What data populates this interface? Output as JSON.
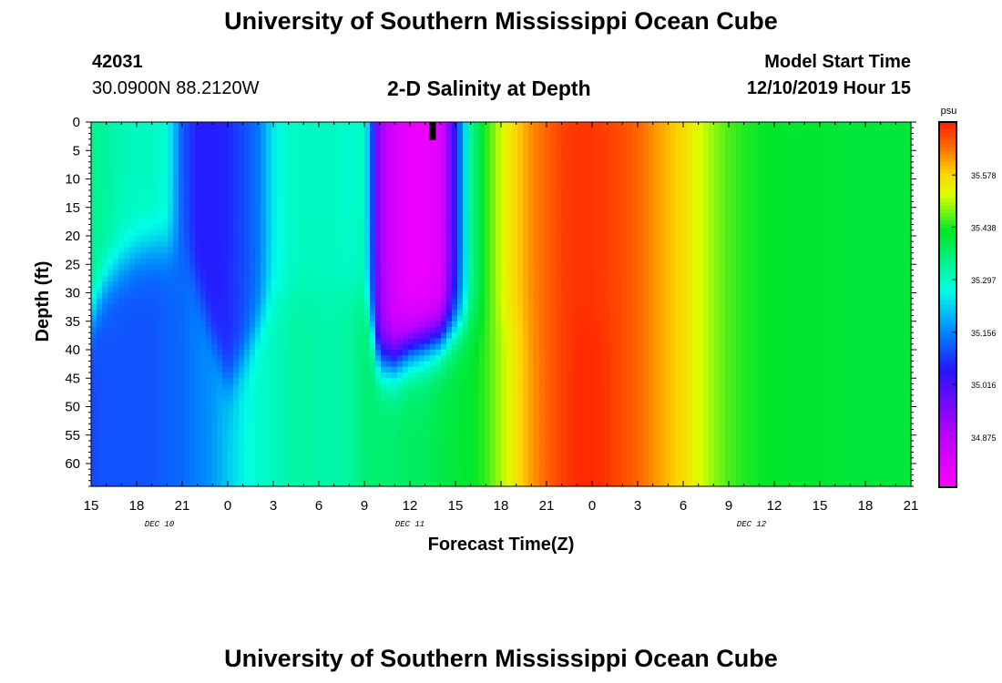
{
  "header": {
    "title": "University of Southern Mississippi Ocean Cube",
    "station_id": "42031",
    "station_coords": "30.0900N 88.2120W",
    "plot_title": "2-D Salinity at Depth",
    "model_start_label": "Model Start Time",
    "model_start_value": "12/10/2019 Hour 15"
  },
  "footer": {
    "title": "University of Southern Mississippi Ocean Cube"
  },
  "chart_data": {
    "type": "heatmap",
    "title": "2-D Salinity at Depth",
    "xlabel": "Forecast Time(Z)",
    "ylabel": "Depth (ft)",
    "x_tick_labels": [
      "15",
      "18",
      "21",
      "0",
      "3",
      "6",
      "9",
      "12",
      "15",
      "18",
      "21",
      "0",
      "3",
      "6",
      "9",
      "12",
      "15",
      "18",
      "21"
    ],
    "x_range_hours": [
      0,
      54
    ],
    "x_tick_step_hours": 3,
    "date_labels": [
      {
        "text": "DEC 10",
        "hour": 4.5
      },
      {
        "text": "DEC 11",
        "hour": 21
      },
      {
        "text": "DEC 12",
        "hour": 43.5
      }
    ],
    "y_tick_labels": [
      "0",
      "5",
      "10",
      "15",
      "20",
      "25",
      "30",
      "35",
      "40",
      "45",
      "50",
      "55",
      "60"
    ],
    "y_range_ft": [
      0,
      64
    ],
    "colorbar": {
      "unit": "psu",
      "min": 34.74,
      "max": 35.72,
      "tick_values": [
        "35.578",
        "35.438",
        "35.297",
        "35.156",
        "35.016",
        "34.875"
      ]
    },
    "marker": {
      "hour": 22.5,
      "depth_top": 0,
      "depth_bottom": 2.5
    },
    "salinity_by_hour": [
      {
        "hour": 0,
        "surface": 35.34,
        "deep": 35.1,
        "break_depth": 34
      },
      {
        "hour": 1,
        "surface": 35.33,
        "deep": 35.11,
        "break_depth": 28
      },
      {
        "hour": 2,
        "surface": 35.31,
        "deep": 35.11,
        "break_depth": 25
      },
      {
        "hour": 3,
        "surface": 35.3,
        "deep": 35.11,
        "break_depth": 23
      },
      {
        "hour": 4,
        "surface": 35.3,
        "deep": 35.11,
        "break_depth": 22
      },
      {
        "hour": 5,
        "surface": 35.28,
        "deep": 35.12,
        "break_depth": 22
      },
      {
        "hour": 6,
        "surface": 35.12,
        "deep": 35.13,
        "break_depth": 22
      },
      {
        "hour": 7,
        "surface": 35.06,
        "deep": 35.15,
        "break_depth": 29
      },
      {
        "hour": 8,
        "surface": 35.06,
        "deep": 35.17,
        "break_depth": 38
      },
      {
        "hour": 9,
        "surface": 35.07,
        "deep": 35.22,
        "break_depth": 46
      },
      {
        "hour": 10,
        "surface": 35.1,
        "deep": 35.26,
        "break_depth": 42
      },
      {
        "hour": 11,
        "surface": 35.14,
        "deep": 35.29,
        "break_depth": 36
      },
      {
        "hour": 12,
        "surface": 35.25,
        "deep": 35.3,
        "break_depth": 30
      },
      {
        "hour": 13,
        "surface": 35.29,
        "deep": 35.32,
        "break_depth": 30
      },
      {
        "hour": 14,
        "surface": 35.3,
        "deep": 35.33,
        "break_depth": 30
      },
      {
        "hour": 15,
        "surface": 35.3,
        "deep": 35.32,
        "break_depth": 30
      },
      {
        "hour": 16,
        "surface": 35.3,
        "deep": 35.32,
        "break_depth": 30
      },
      {
        "hour": 17,
        "surface": 35.29,
        "deep": 35.33,
        "break_depth": 30
      },
      {
        "hour": 18,
        "surface": 35.3,
        "deep": 35.36,
        "break_depth": 30
      },
      {
        "hour": 19,
        "surface": 34.92,
        "deep": 35.37,
        "break_depth": 42
      },
      {
        "hour": 20,
        "surface": 34.82,
        "deep": 35.37,
        "break_depth": 42
      },
      {
        "hour": 21,
        "surface": 34.78,
        "deep": 35.38,
        "break_depth": 40
      },
      {
        "hour": 22,
        "surface": 34.78,
        "deep": 35.38,
        "break_depth": 39
      },
      {
        "hour": 23,
        "surface": 34.8,
        "deep": 35.4,
        "break_depth": 38
      },
      {
        "hour": 24,
        "surface": 35.05,
        "deep": 35.41,
        "break_depth": 36
      },
      {
        "hour": 25,
        "surface": 35.33,
        "deep": 35.42,
        "break_depth": 35
      },
      {
        "hour": 26,
        "surface": 35.44,
        "deep": 35.45,
        "break_depth": 35
      },
      {
        "hour": 27,
        "surface": 35.52,
        "deep": 35.5,
        "break_depth": 35
      },
      {
        "hour": 28,
        "surface": 35.58,
        "deep": 35.56,
        "break_depth": 35
      },
      {
        "hour": 29,
        "surface": 35.63,
        "deep": 35.62,
        "break_depth": 35
      },
      {
        "hour": 30,
        "surface": 35.66,
        "deep": 35.66,
        "break_depth": 35
      },
      {
        "hour": 31,
        "surface": 35.69,
        "deep": 35.69,
        "break_depth": 35
      },
      {
        "hour": 32,
        "surface": 35.7,
        "deep": 35.71,
        "break_depth": 35
      },
      {
        "hour": 33,
        "surface": 35.7,
        "deep": 35.71,
        "break_depth": 35
      },
      {
        "hour": 34,
        "surface": 35.69,
        "deep": 35.7,
        "break_depth": 35
      },
      {
        "hour": 35,
        "surface": 35.68,
        "deep": 35.68,
        "break_depth": 35
      },
      {
        "hour": 36,
        "surface": 35.66,
        "deep": 35.66,
        "break_depth": 35
      },
      {
        "hour": 37,
        "surface": 35.63,
        "deep": 35.63,
        "break_depth": 35
      },
      {
        "hour": 38,
        "surface": 35.6,
        "deep": 35.6,
        "break_depth": 35
      },
      {
        "hour": 39,
        "surface": 35.57,
        "deep": 35.57,
        "break_depth": 35
      },
      {
        "hour": 40,
        "surface": 35.53,
        "deep": 35.53,
        "break_depth": 35
      },
      {
        "hour": 41,
        "surface": 35.49,
        "deep": 35.49,
        "break_depth": 35
      },
      {
        "hour": 42,
        "surface": 35.46,
        "deep": 35.46,
        "break_depth": 35
      },
      {
        "hour": 43,
        "surface": 35.44,
        "deep": 35.44,
        "break_depth": 35
      },
      {
        "hour": 44,
        "surface": 35.43,
        "deep": 35.43,
        "break_depth": 35
      },
      {
        "hour": 46,
        "surface": 35.42,
        "deep": 35.42,
        "break_depth": 35
      },
      {
        "hour": 48,
        "surface": 35.42,
        "deep": 35.42,
        "break_depth": 35
      },
      {
        "hour": 50,
        "surface": 35.41,
        "deep": 35.41,
        "break_depth": 35
      },
      {
        "hour": 52,
        "surface": 35.41,
        "deep": 35.41,
        "break_depth": 35
      },
      {
        "hour": 54,
        "surface": 35.41,
        "deep": 35.41,
        "break_depth": 35
      }
    ]
  }
}
